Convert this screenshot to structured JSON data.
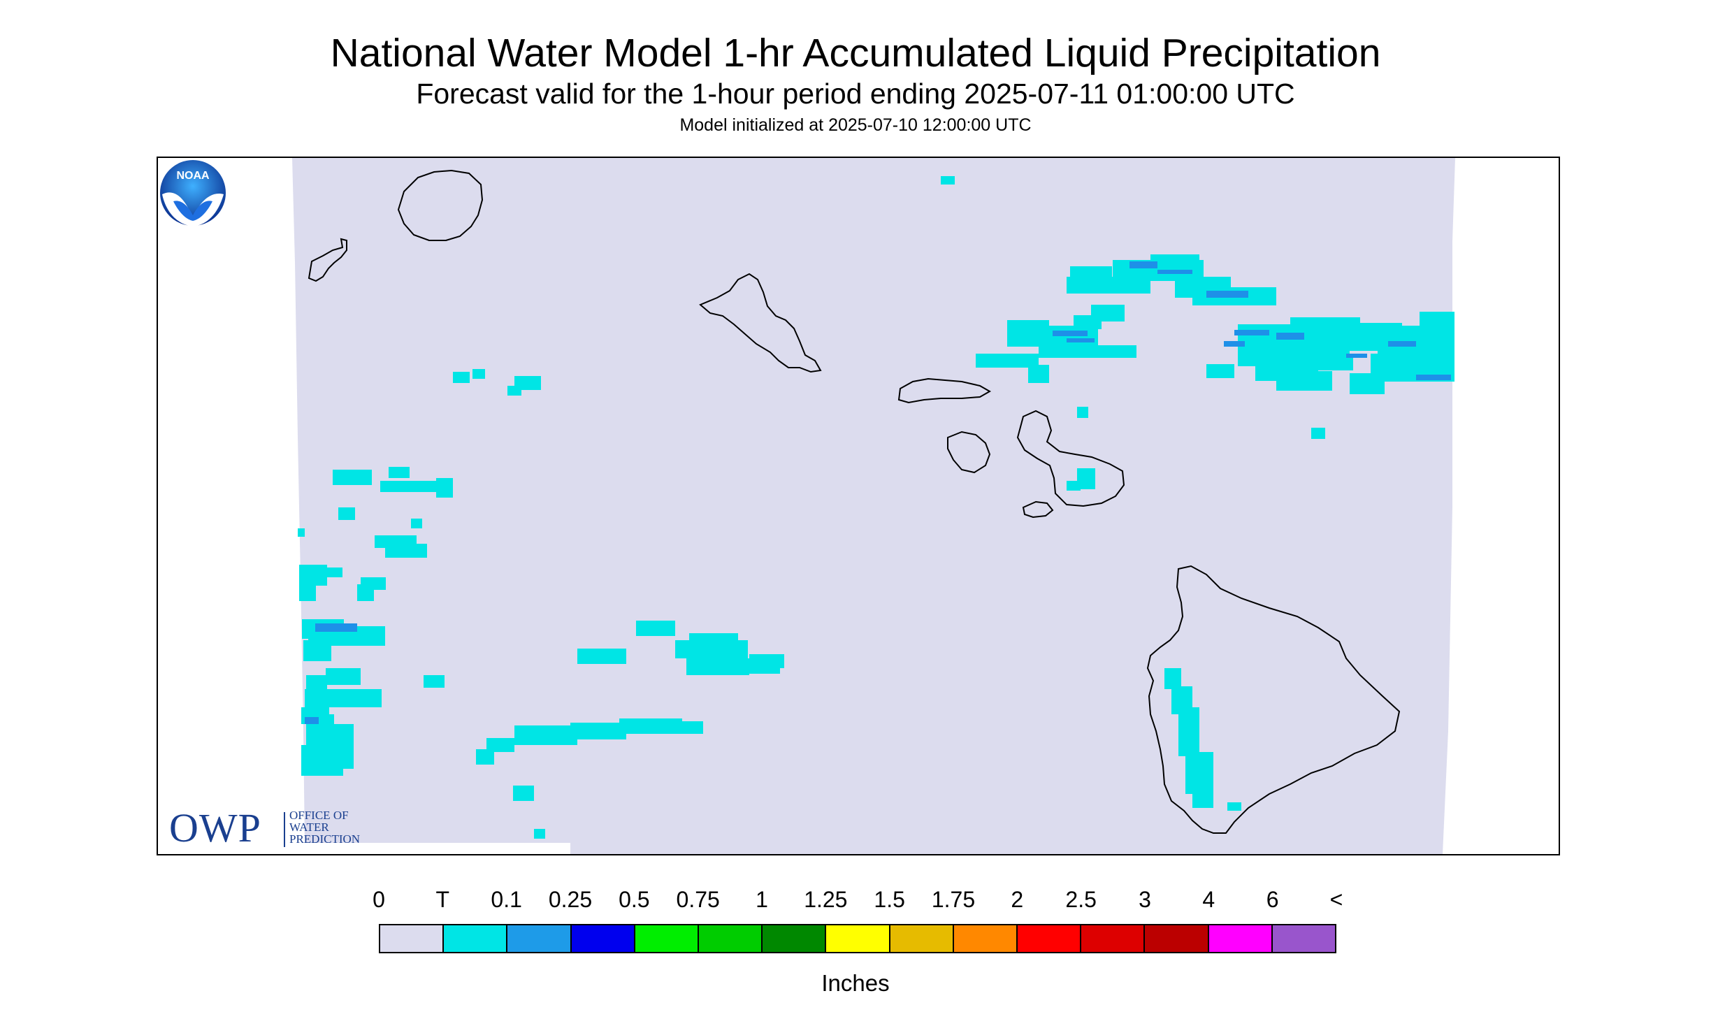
{
  "header": {
    "title": "National Water Model 1-hr Accumulated Liquid Precipitation",
    "subtitle": "Forecast valid for the 1-hour period ending 2025-07-11 01:00:00 UTC",
    "init_line": "Model initialized at 2025-07-10 12:00:00 UTC"
  },
  "map": {
    "background_color": "#dcdcee",
    "outside_color": "#ffffff",
    "coast_color": "#000000",
    "precip_light_color": "#00e5e5",
    "precip_medium_color": "#1e90e8",
    "logos": {
      "owp_main": "OWP",
      "owp_lines": [
        "OFFICE OF",
        "WATER",
        "PREDICTION"
      ],
      "noaa_text": "NOAA",
      "noaa_icon": "noaa-logo-icon"
    }
  },
  "legend": {
    "labels": [
      "0",
      "T",
      "0.1",
      "0.25",
      "0.5",
      "0.75",
      "1",
      "1.25",
      "1.5",
      "1.75",
      "2",
      "2.5",
      "3",
      "4",
      "6",
      "<"
    ],
    "colors": [
      "#dcdcee",
      "#00e5e5",
      "#1e9be8",
      "#0000ee",
      "#00ee00",
      "#00cc00",
      "#008800",
      "#ffff00",
      "#e6bb00",
      "#ff8800",
      "#ff0000",
      "#dd0000",
      "#bb0000",
      "#ff00ff",
      "#9955cc"
    ],
    "units": "Inches"
  }
}
